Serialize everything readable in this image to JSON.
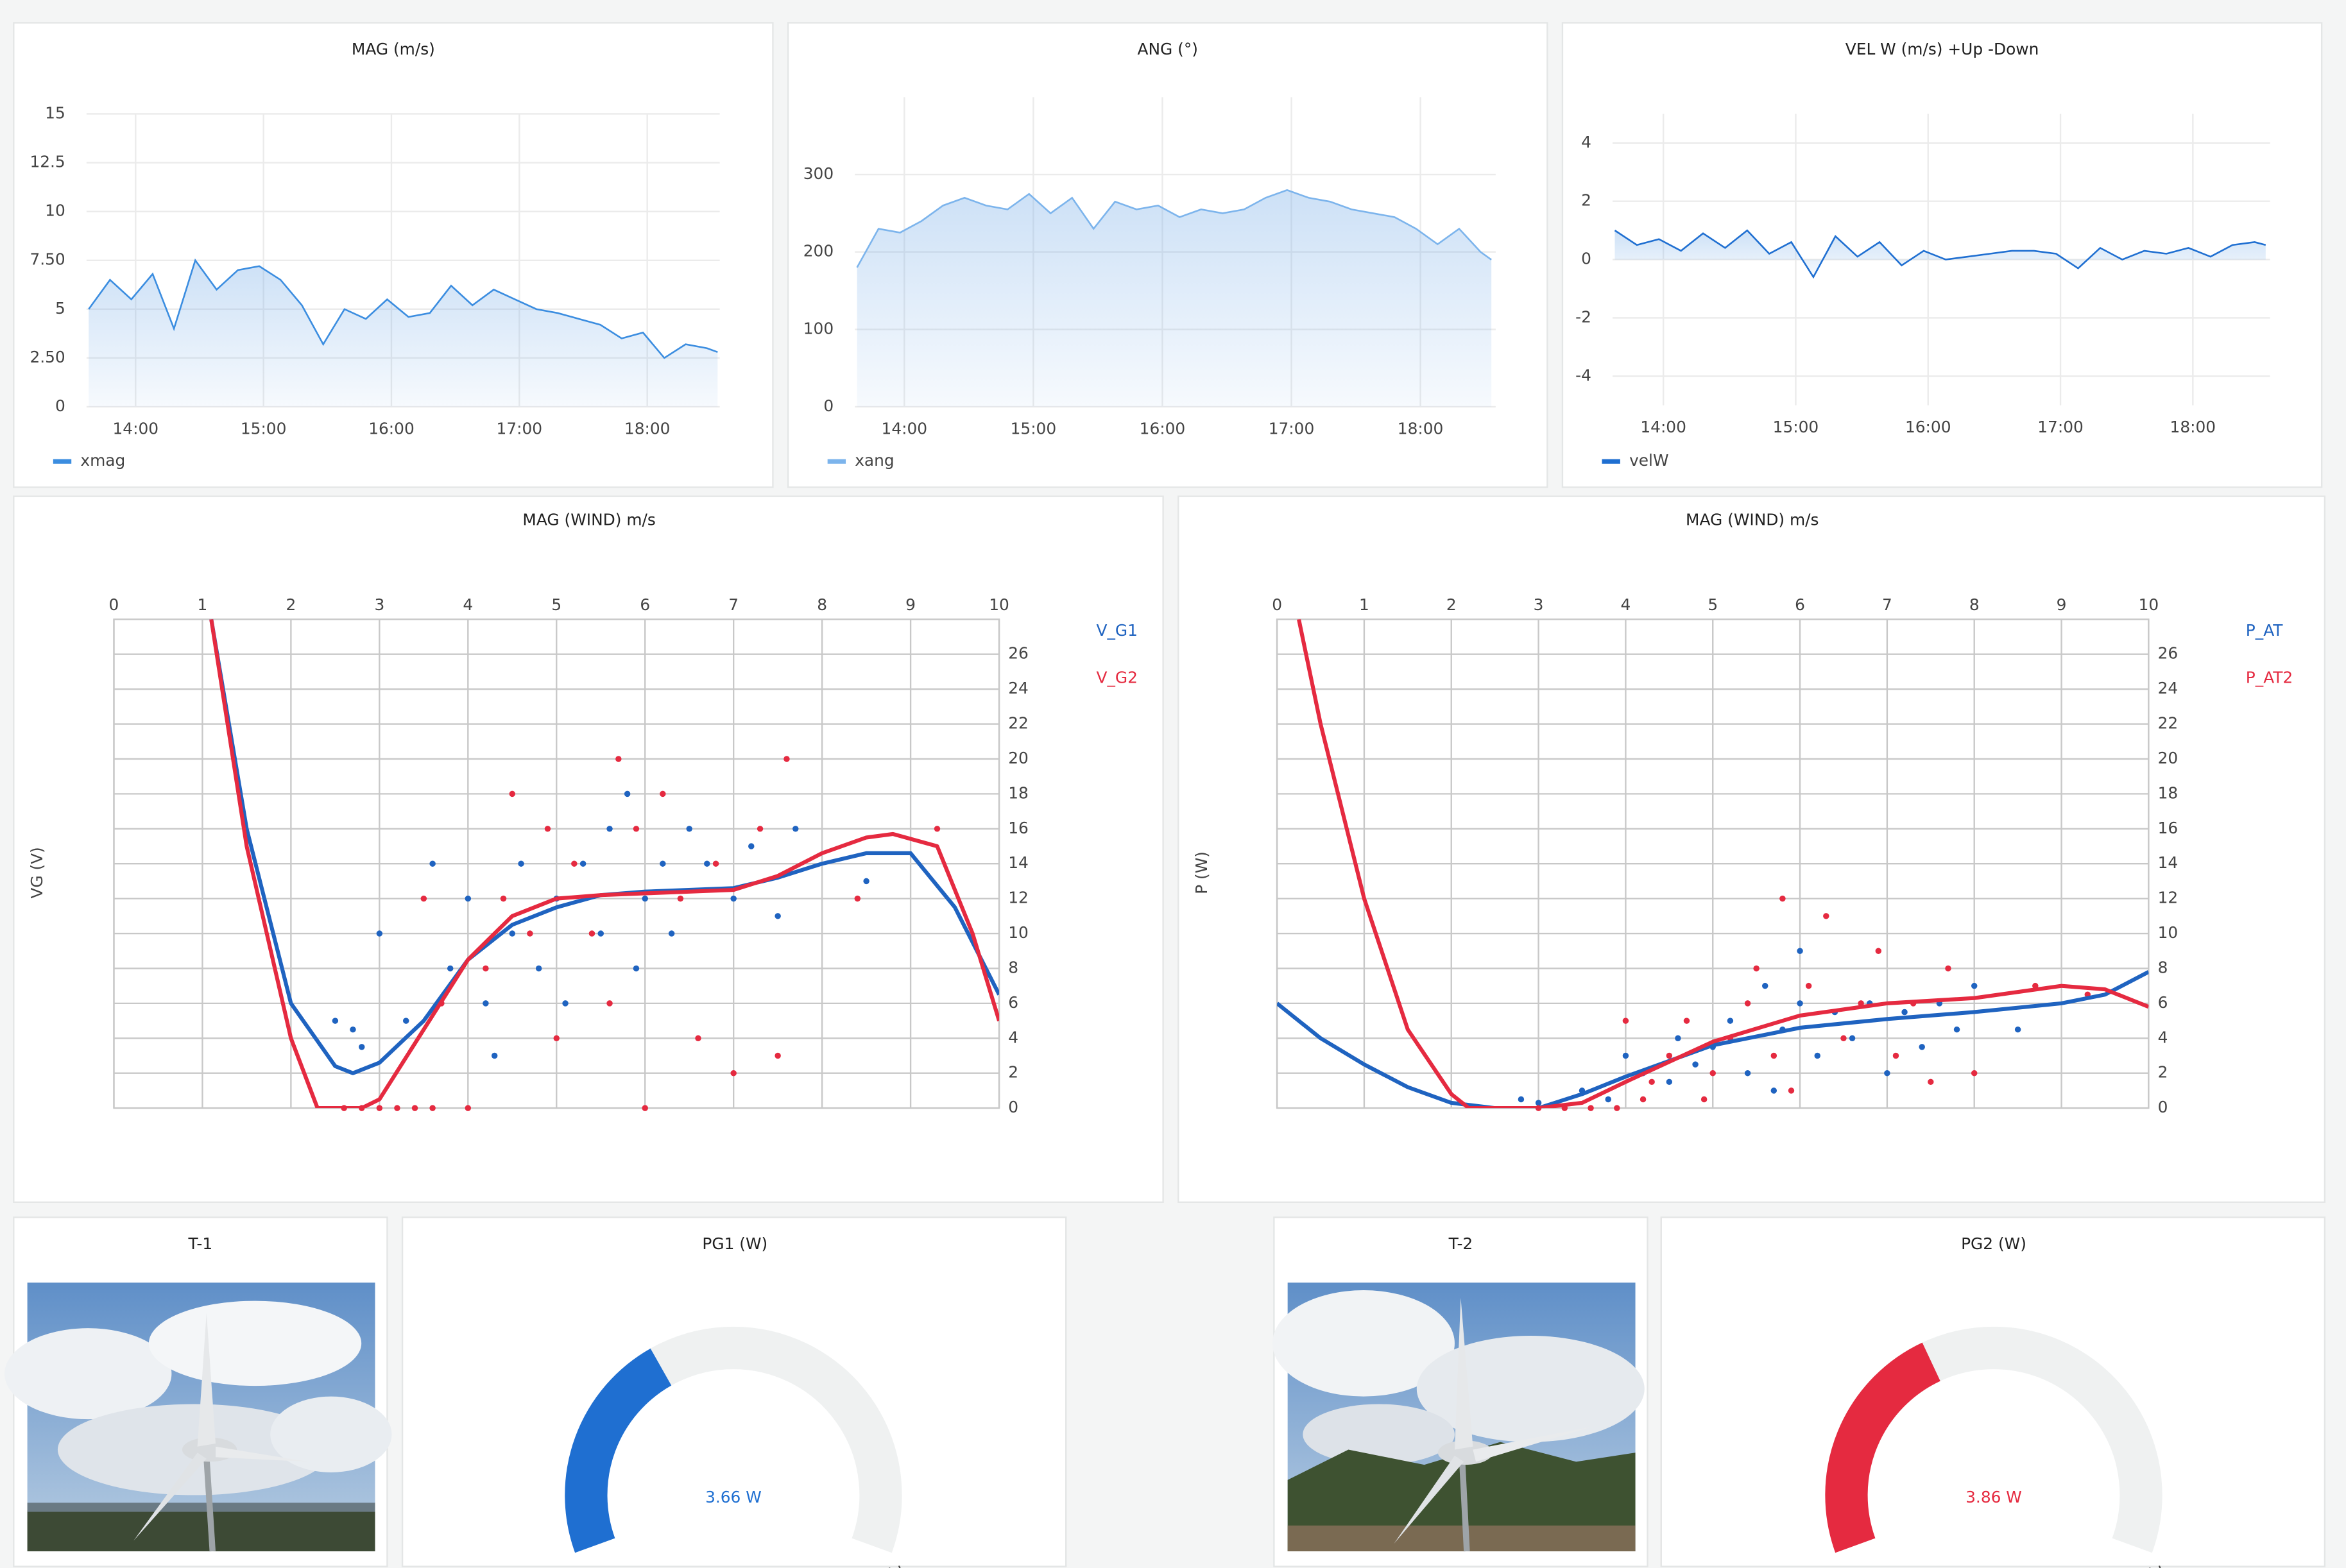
{
  "chart_data": [
    {
      "type": "line",
      "title": "MAG (m/s)",
      "x": [
        "13:38",
        "13:48",
        "13:58",
        "14:08",
        "14:18",
        "14:28",
        "14:38",
        "14:48",
        "14:58",
        "15:08",
        "15:18",
        "15:28",
        "15:38",
        "15:48",
        "15:58",
        "16:08",
        "16:18",
        "16:28",
        "16:38",
        "16:48",
        "16:58",
        "17:08",
        "17:18",
        "17:28",
        "17:38",
        "17:48",
        "17:58",
        "18:08",
        "18:18",
        "18:28",
        "18:33"
      ],
      "series": [
        {
          "name": "xmag",
          "color": "#3b8de0",
          "values": [
            5,
            6.5,
            5.5,
            6.8,
            4,
            7.5,
            6,
            7,
            7.2,
            6.5,
            5.2,
            3.2,
            5,
            4.5,
            5.5,
            4.6,
            4.8,
            6.2,
            5.2,
            6,
            5.5,
            5,
            4.8,
            4.5,
            4.2,
            3.5,
            3.8,
            2.5,
            3.2,
            3,
            2.8
          ]
        }
      ],
      "xlim": [
        "13:37",
        "18:34"
      ],
      "xticks": [
        "14:00",
        "15:00",
        "16:00",
        "17:00",
        "18:00"
      ],
      "ylim": [
        0,
        15
      ],
      "yticks": [
        0,
        {
          "value": 2.5,
          "label": "2.50"
        },
        5,
        {
          "value": 7.5,
          "label": "7.50"
        },
        10,
        12.5,
        15
      ],
      "grid": true
    },
    {
      "type": "line",
      "title": "ANG (°)",
      "x": [
        "13:38",
        "13:48",
        "13:58",
        "14:08",
        "14:18",
        "14:28",
        "14:38",
        "14:48",
        "14:58",
        "15:08",
        "15:18",
        "15:28",
        "15:38",
        "15:48",
        "15:58",
        "16:08",
        "16:18",
        "16:28",
        "16:38",
        "16:48",
        "16:58",
        "17:08",
        "17:18",
        "17:28",
        "17:38",
        "17:48",
        "17:58",
        "18:08",
        "18:18",
        "18:28",
        "18:33"
      ],
      "series": [
        {
          "name": "xang",
          "color": "#7cb4ec",
          "values": [
            180,
            230,
            225,
            240,
            260,
            270,
            260,
            255,
            275,
            250,
            270,
            230,
            265,
            255,
            260,
            245,
            255,
            250,
            255,
            270,
            280,
            270,
            265,
            255,
            250,
            245,
            230,
            210,
            230,
            200,
            190
          ]
        }
      ],
      "xlim": [
        "13:37",
        "18:35"
      ],
      "xticks": [
        "14:00",
        "15:00",
        "16:00",
        "17:00",
        "18:00"
      ],
      "ylim": [
        0,
        400
      ],
      "yticks": [
        0,
        100,
        200,
        300
      ],
      "grid": true
    },
    {
      "type": "line",
      "title": "VEL W (m/s) +Up -Down",
      "x": [
        "13:38",
        "13:48",
        "13:58",
        "14:08",
        "14:18",
        "14:28",
        "14:38",
        "14:48",
        "14:58",
        "15:08",
        "15:18",
        "15:28",
        "15:38",
        "15:48",
        "15:58",
        "16:08",
        "16:18",
        "16:28",
        "16:38",
        "16:48",
        "16:58",
        "17:08",
        "17:18",
        "17:28",
        "17:38",
        "17:48",
        "17:58",
        "18:08",
        "18:18",
        "18:28",
        "18:33"
      ],
      "series": [
        {
          "name": "velW",
          "color": "#1f6fd1",
          "values": [
            1,
            0.5,
            0.7,
            0.3,
            0.9,
            0.4,
            1,
            0.2,
            0.6,
            -0.6,
            0.8,
            0.1,
            0.6,
            -0.2,
            0.3,
            0,
            0.1,
            0.2,
            0.3,
            0.3,
            0.2,
            -0.3,
            0.4,
            0,
            0.3,
            0.2,
            0.4,
            0.1,
            0.5,
            0.6,
            0.5
          ]
        }
      ],
      "xlim": [
        "13:37",
        "18:35"
      ],
      "xticks": [
        "14:00",
        "15:00",
        "16:00",
        "17:00",
        "18:00"
      ],
      "ylim": [
        -5,
        5
      ],
      "yticks": [
        -4,
        -2,
        0,
        2,
        4
      ],
      "grid": true
    },
    {
      "type": "scatter",
      "title": "MAG (WIND) m/s",
      "ylabel": "VG (V)",
      "series": [
        {
          "name": "V_G1",
          "color": "#1f63c0",
          "x": [
            2.5,
            2.7,
            2.8,
            3,
            3.3,
            3.6,
            3.8,
            4,
            4.2,
            4.3,
            4.5,
            4.6,
            4.8,
            5,
            5.1,
            5.3,
            5.5,
            5.6,
            5.8,
            5.9,
            6,
            6.2,
            6.3,
            6.5,
            6.7,
            7,
            7.2,
            7.5,
            7.7,
            8.5
          ],
          "values": [
            5,
            4.5,
            3.5,
            10,
            5,
            14,
            8,
            12,
            6,
            3,
            10,
            14,
            8,
            12,
            6,
            14,
            10,
            16,
            18,
            8,
            12,
            14,
            10,
            16,
            14,
            12,
            15,
            11,
            16,
            13
          ],
          "trend": {
            "x": [
              1.1,
              1.5,
              2,
              2.5,
              2.7,
              3,
              3.5,
              4,
              4.5,
              5,
              5.5,
              6,
              7,
              7.5,
              8,
              8.5,
              9,
              9.5,
              10
            ],
            "values": [
              28,
              16,
              6,
              2.4,
              2,
              2.6,
              5,
              8.5,
              10.5,
              11.5,
              12.2,
              12.4,
              12.6,
              13.2,
              14,
              14.6,
              14.6,
              11.5,
              6.5
            ]
          }
        },
        {
          "name": "V_G2",
          "color": "#e52a40",
          "x": [
            2.6,
            2.8,
            3,
            3.2,
            3.4,
            3.6,
            3.5,
            3.7,
            4,
            4.2,
            4.4,
            4.5,
            4.7,
            4.9,
            5,
            5.2,
            5.4,
            5.6,
            5.7,
            5.9,
            6,
            6.2,
            6.4,
            6.6,
            6.8,
            7,
            7.3,
            7.5,
            7.6,
            8.4,
            9.3
          ],
          "values": [
            0,
            0,
            0,
            0,
            0,
            0,
            12,
            6,
            0,
            8,
            12,
            18,
            10,
            16,
            4,
            14,
            10,
            6,
            20,
            16,
            0,
            18,
            12,
            4,
            14,
            2,
            16,
            3,
            20,
            12,
            16
          ],
          "trend": {
            "x": [
              1.1,
              1.5,
              2,
              2.3,
              2.8,
              3,
              3.5,
              4,
              4.5,
              5,
              5.5,
              6,
              7,
              7.5,
              8,
              8.5,
              8.8,
              9.3,
              9.7,
              10
            ],
            "values": [
              28,
              15,
              4,
              0,
              0,
              0.5,
              4.5,
              8.5,
              11,
              12,
              12.2,
              12.3,
              12.5,
              13.3,
              14.6,
              15.5,
              15.7,
              15,
              10,
              5
            ]
          }
        }
      ],
      "xlim": [
        0,
        10
      ],
      "xticks": [
        0,
        1,
        2,
        3,
        4,
        5,
        6,
        7,
        8,
        9,
        10
      ],
      "ylim": [
        0,
        28
      ],
      "yticks": [
        0,
        2,
        4,
        6,
        8,
        10,
        12,
        14,
        16,
        18,
        20,
        22,
        24,
        26
      ],
      "grid": true
    },
    {
      "type": "scatter",
      "title": "MAG (WIND) m/s",
      "ylabel": "P (W)",
      "series": [
        {
          "name": "P_AT",
          "color": "#1f63c0",
          "x": [
            2.8,
            3,
            3.5,
            3.8,
            4,
            4.2,
            4.5,
            4.6,
            4.8,
            5,
            5.2,
            5.4,
            5.6,
            5.7,
            5.8,
            6,
            6,
            6.2,
            6.4,
            6.6,
            6.8,
            7,
            7.2,
            7.4,
            7.6,
            7.8,
            8,
            8.5
          ],
          "values": [
            0.5,
            0.3,
            1,
            0.5,
            3,
            2,
            1.5,
            4,
            2.5,
            3.5,
            5,
            2,
            7,
            1,
            4.5,
            6,
            9,
            3,
            5.5,
            4,
            6,
            2,
            5.5,
            3.5,
            6,
            4.5,
            7,
            4.5
          ],
          "trend": {
            "x": [
              0,
              0.5,
              1,
              1.5,
              2,
              2.5,
              3,
              3.5,
              4,
              5,
              6,
              7,
              8,
              9,
              9.5,
              10
            ],
            "values": [
              6,
              4,
              2.5,
              1.2,
              0.3,
              0,
              0,
              0.8,
              1.8,
              3.6,
              4.6,
              5.1,
              5.5,
              6,
              6.5,
              7.8
            ]
          }
        },
        {
          "name": "P_AT2",
          "color": "#e52a40",
          "x": [
            3,
            3.3,
            3.6,
            3.9,
            4,
            4.2,
            4.3,
            4.5,
            4.7,
            4.9,
            5,
            5.2,
            5.4,
            5.5,
            5.7,
            5.8,
            5.9,
            6.1,
            6.3,
            6.5,
            6.7,
            6.9,
            7.1,
            7.3,
            7.5,
            7.7,
            8,
            8.7,
            9.3
          ],
          "values": [
            0,
            0,
            0,
            0,
            5,
            0.5,
            1.5,
            3,
            5,
            0.5,
            2,
            4,
            6,
            8,
            3,
            12,
            1,
            7,
            11,
            4,
            6,
            9,
            3,
            6,
            1.5,
            8,
            2,
            7,
            6.5
          ],
          "trend": {
            "x": [
              0.25,
              0.5,
              1,
              1.5,
              2,
              2.2,
              3,
              3.5,
              4,
              5,
              6,
              7,
              8,
              9,
              9.5,
              10
            ],
            "values": [
              28,
              22,
              12,
              4.5,
              0.8,
              0,
              0,
              0.3,
              1.5,
              3.8,
              5.3,
              6,
              6.3,
              7,
              6.8,
              5.8
            ]
          }
        }
      ],
      "xlim": [
        0,
        10
      ],
      "xticks": [
        0,
        1,
        2,
        3,
        4,
        5,
        6,
        7,
        8,
        9,
        10
      ],
      "ylim": [
        0,
        28
      ],
      "yticks": [
        0,
        2,
        4,
        6,
        8,
        10,
        12,
        14,
        16,
        18,
        20,
        22,
        24,
        26
      ],
      "grid": true
    },
    {
      "type": "image",
      "title": "T-1"
    },
    {
      "type": "gauge",
      "title": "PG1 (W)",
      "values": [
        3.66
      ],
      "value_labels": [
        "3.66 W"
      ],
      "ylim": [
        0,
        10
      ],
      "ticks": [
        0,
        10
      ],
      "color": "#1f6fd1"
    },
    {
      "type": "image",
      "title": "T-2"
    },
    {
      "type": "gauge",
      "title": "PG2 (W)",
      "values": [
        3.86
      ],
      "value_labels": [
        "3.86 W"
      ],
      "ylim": [
        0,
        10
      ],
      "ticks": [
        0,
        10
      ],
      "color": "#e52a40"
    }
  ]
}
